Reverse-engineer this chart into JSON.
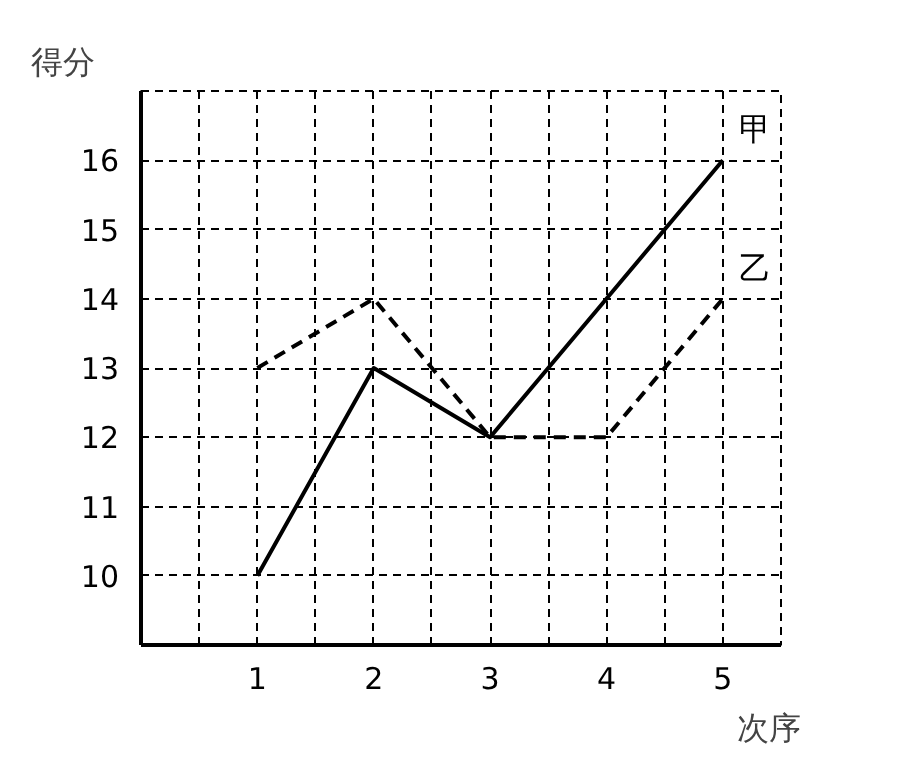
{
  "chart_data": {
    "type": "line",
    "xlabel": "次序",
    "ylabel": "得分",
    "x": [
      1,
      2,
      3,
      4,
      5
    ],
    "series": [
      {
        "name": "甲",
        "color": "#000000",
        "values": [
          10,
          13,
          12,
          14,
          16
        ],
        "line_style": "solid"
      },
      {
        "name": "乙",
        "color": "#000000",
        "values": [
          13,
          14,
          12,
          12,
          14
        ],
        "line_style": "dashed"
      }
    ],
    "xlim": [
      0,
      5.5
    ],
    "ylim": [
      9,
      17
    ],
    "xticks": [
      {
        "value": 0.5,
        "label": null
      },
      1,
      {
        "value": 1.5,
        "label": null
      },
      2,
      {
        "value": 2.5,
        "label": null
      },
      3,
      {
        "value": 3.5,
        "label": null
      },
      4,
      {
        "value": 4.5,
        "label": null
      },
      5
    ],
    "yticks": [
      10,
      11,
      12,
      13,
      14,
      15,
      16
    ],
    "grid": true,
    "marker": "none"
  }
}
